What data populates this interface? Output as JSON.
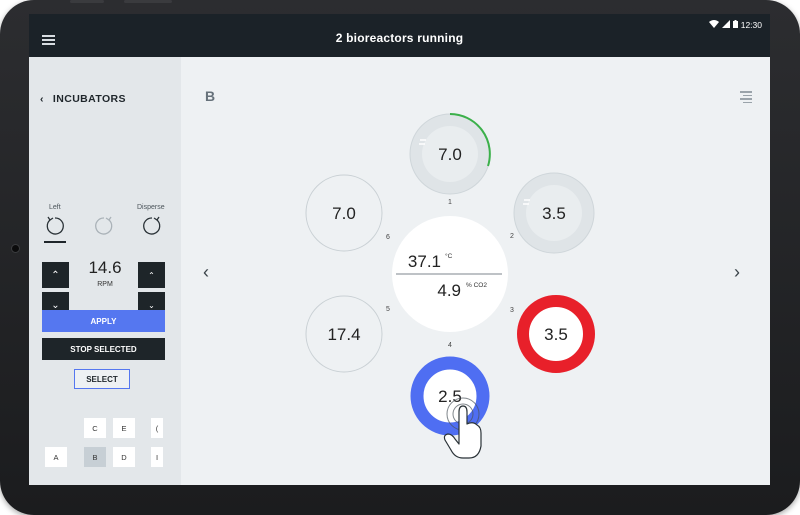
{
  "header": {
    "title": "2 bioreactors running"
  },
  "status_bar": {
    "time": "12:30"
  },
  "sidebar": {
    "back_label": "INCUBATORS",
    "left_label": "Left",
    "disperse_label": "Disperse",
    "rpm_value": "14.6",
    "rpm_label": "RPM",
    "apply_label": "APPLY",
    "stop_label": "STOP SELECTED",
    "select_label": "SELECT",
    "grid_cells": [
      "C",
      "E",
      "(",
      "A",
      "B",
      "D",
      "I"
    ],
    "selected_cell": "B"
  },
  "main": {
    "station_label": "B",
    "center": {
      "temperature": "37.1",
      "temperature_unit": "°C",
      "co2": "4.9",
      "co2_unit": "% CO2"
    },
    "reactors": [
      {
        "position": "1",
        "value": "7.0",
        "state": "running"
      },
      {
        "position": "2",
        "value": "3.5",
        "state": "idle"
      },
      {
        "position": "3",
        "value": "3.5",
        "state": "alert"
      },
      {
        "position": "4",
        "value": "2.5",
        "state": "selected"
      },
      {
        "position": "5",
        "value": "17.4",
        "state": "empty"
      },
      {
        "position": "6",
        "value": "7.0",
        "state": "empty"
      }
    ]
  },
  "colors": {
    "accent_blue": "#5577f0",
    "alert_red": "#e8202a",
    "progress_green": "#3bb04a",
    "dark": "#1b2228"
  }
}
